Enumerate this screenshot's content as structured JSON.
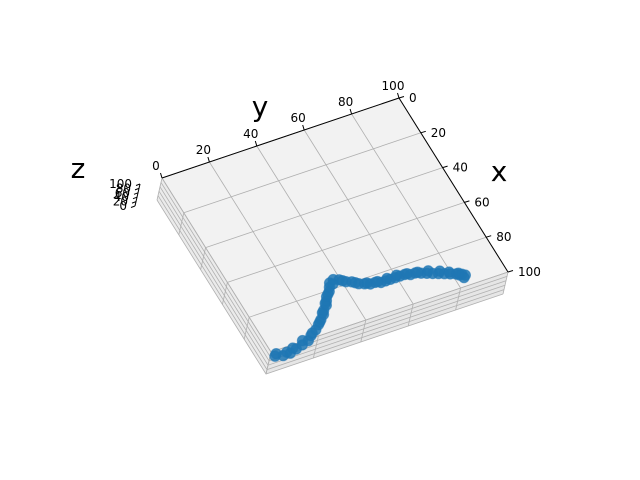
{
  "chart_data": {
    "type": "scatter",
    "projection": "3d",
    "title": "",
    "xlabel": "x",
    "ylabel": "y",
    "zlabel": "z",
    "xlim": [
      0,
      100
    ],
    "ylim": [
      0,
      100
    ],
    "zlim": [
      0,
      100
    ],
    "x_ticks": [
      "0",
      "20",
      "40",
      "60",
      "80",
      "100"
    ],
    "y_ticks": [
      "0",
      "20",
      "40",
      "60",
      "80",
      "100"
    ],
    "z_ticks": [
      "0",
      "20",
      "40",
      "60",
      "80",
      "100"
    ],
    "grid": true,
    "marker_color": "#1f77b4",
    "pane_color": "#f2f2f2",
    "grid_color": "#b0b0b0",
    "series": [
      {
        "points": [
          [
            93,
            7,
            0
          ],
          [
            94,
            10,
            0
          ],
          [
            94,
            13,
            0
          ],
          [
            93,
            16,
            0
          ],
          [
            92,
            19,
            0
          ],
          [
            91,
            22,
            0
          ],
          [
            89,
            24,
            0
          ],
          [
            87,
            27,
            0
          ],
          [
            85,
            29,
            0
          ],
          [
            83,
            31,
            0
          ],
          [
            81,
            33,
            0
          ],
          [
            79,
            34,
            0
          ],
          [
            77,
            36,
            0
          ],
          [
            75,
            37,
            0
          ],
          [
            73,
            38,
            0
          ],
          [
            71,
            40,
            0
          ],
          [
            69,
            41,
            0
          ],
          [
            67,
            42,
            0
          ],
          [
            66,
            44,
            0
          ],
          [
            67,
            46,
            0
          ],
          [
            69,
            48,
            0
          ],
          [
            70,
            50,
            0
          ],
          [
            72,
            52,
            0
          ],
          [
            73,
            54,
            0
          ],
          [
            74,
            56,
            0
          ],
          [
            74,
            58,
            0
          ],
          [
            75,
            60,
            0
          ],
          [
            75,
            62,
            0
          ],
          [
            75,
            64,
            0
          ],
          [
            75,
            66,
            0
          ],
          [
            75,
            68,
            0
          ],
          [
            75,
            70,
            0
          ],
          [
            76,
            72,
            0
          ],
          [
            76,
            74,
            0
          ],
          [
            77,
            76,
            0
          ],
          [
            78,
            78,
            0
          ],
          [
            79,
            80,
            0
          ],
          [
            80,
            82,
            0
          ],
          [
            81,
            84,
            0
          ],
          [
            82,
            86,
            0
          ],
          [
            83,
            88,
            0
          ],
          [
            84,
            89,
            0
          ],
          [
            84,
            90,
            0
          ],
          [
            85,
            91,
            0
          ],
          [
            92,
            8,
            0
          ],
          [
            93,
            12,
            0
          ],
          [
            92,
            15,
            0
          ],
          [
            90,
            20,
            0
          ],
          [
            88,
            25,
            0
          ],
          [
            84,
            30,
            0
          ],
          [
            80,
            33,
            0
          ],
          [
            76,
            36,
            0
          ],
          [
            72,
            39,
            0
          ],
          [
            68,
            43,
            0
          ],
          [
            68,
            47,
            0
          ],
          [
            71,
            51,
            0
          ],
          [
            73,
            55,
            0
          ],
          [
            74,
            59,
            0
          ],
          [
            74,
            63,
            0
          ],
          [
            74,
            67,
            0
          ],
          [
            75,
            71,
            0
          ],
          [
            76,
            75,
            0
          ],
          [
            77,
            79,
            0
          ],
          [
            79,
            83,
            0
          ],
          [
            81,
            86,
            0
          ],
          [
            83,
            89,
            0
          ],
          [
            86,
            90,
            0
          ]
        ]
      }
    ]
  }
}
